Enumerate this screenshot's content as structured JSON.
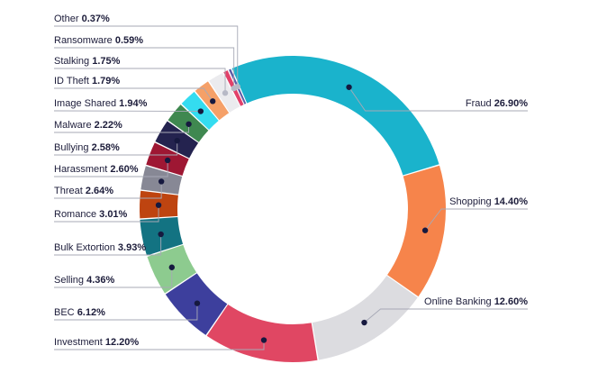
{
  "chart_data": {
    "type": "pie",
    "variant": "donut",
    "unit": "%",
    "slices": [
      {
        "label": "Fraud",
        "value": 26.9,
        "value_text": "26.90%",
        "color": "#1ab3cc",
        "side": "right"
      },
      {
        "label": "Shopping",
        "value": 14.4,
        "value_text": "14.40%",
        "color": "#f6844b",
        "side": "right"
      },
      {
        "label": "Online Banking",
        "value": 12.6,
        "value_text": "12.60%",
        "color": "#dcdce0",
        "side": "right"
      },
      {
        "label": "Investment",
        "value": 12.2,
        "value_text": "12.20%",
        "color": "#e04763",
        "side": "left"
      },
      {
        "label": "BEC",
        "value": 6.12,
        "value_text": "6.12%",
        "color": "#3d3f9d",
        "side": "left"
      },
      {
        "label": "Selling",
        "value": 4.36,
        "value_text": "4.36%",
        "color": "#8dcb8f",
        "side": "left"
      },
      {
        "label": "Bulk Extortion",
        "value": 3.93,
        "value_text": "3.93%",
        "color": "#137382",
        "side": "left"
      },
      {
        "label": "Romance",
        "value": 3.01,
        "value_text": "3.01%",
        "color": "#be4410",
        "side": "left"
      },
      {
        "label": "Threat",
        "value": 2.64,
        "value_text": "2.64%",
        "color": "#878895",
        "side": "left"
      },
      {
        "label": "Harassment",
        "value": 2.6,
        "value_text": "2.60%",
        "color": "#9e1733",
        "side": "left"
      },
      {
        "label": "Bullying",
        "value": 2.58,
        "value_text": "2.58%",
        "color": "#24234f",
        "side": "left"
      },
      {
        "label": "Malware",
        "value": 2.22,
        "value_text": "2.22%",
        "color": "#3f8850",
        "side": "left"
      },
      {
        "label": "Image Shared",
        "value": 1.94,
        "value_text": "1.94%",
        "color": "#34dcf0",
        "side": "left"
      },
      {
        "label": "ID Theft",
        "value": 1.79,
        "value_text": "1.79%",
        "color": "#f5a068",
        "side": "left"
      },
      {
        "label": "Stalking",
        "value": 1.75,
        "value_text": "1.75%",
        "color": "#ebebee",
        "side": "left"
      },
      {
        "label": "Ransomware",
        "value": 0.59,
        "value_text": "0.59%",
        "color": "#e2416a",
        "side": "left"
      },
      {
        "label": "Other",
        "value": 0.37,
        "value_text": "0.37%",
        "color": "#5d5ca6",
        "side": "left"
      }
    ]
  }
}
